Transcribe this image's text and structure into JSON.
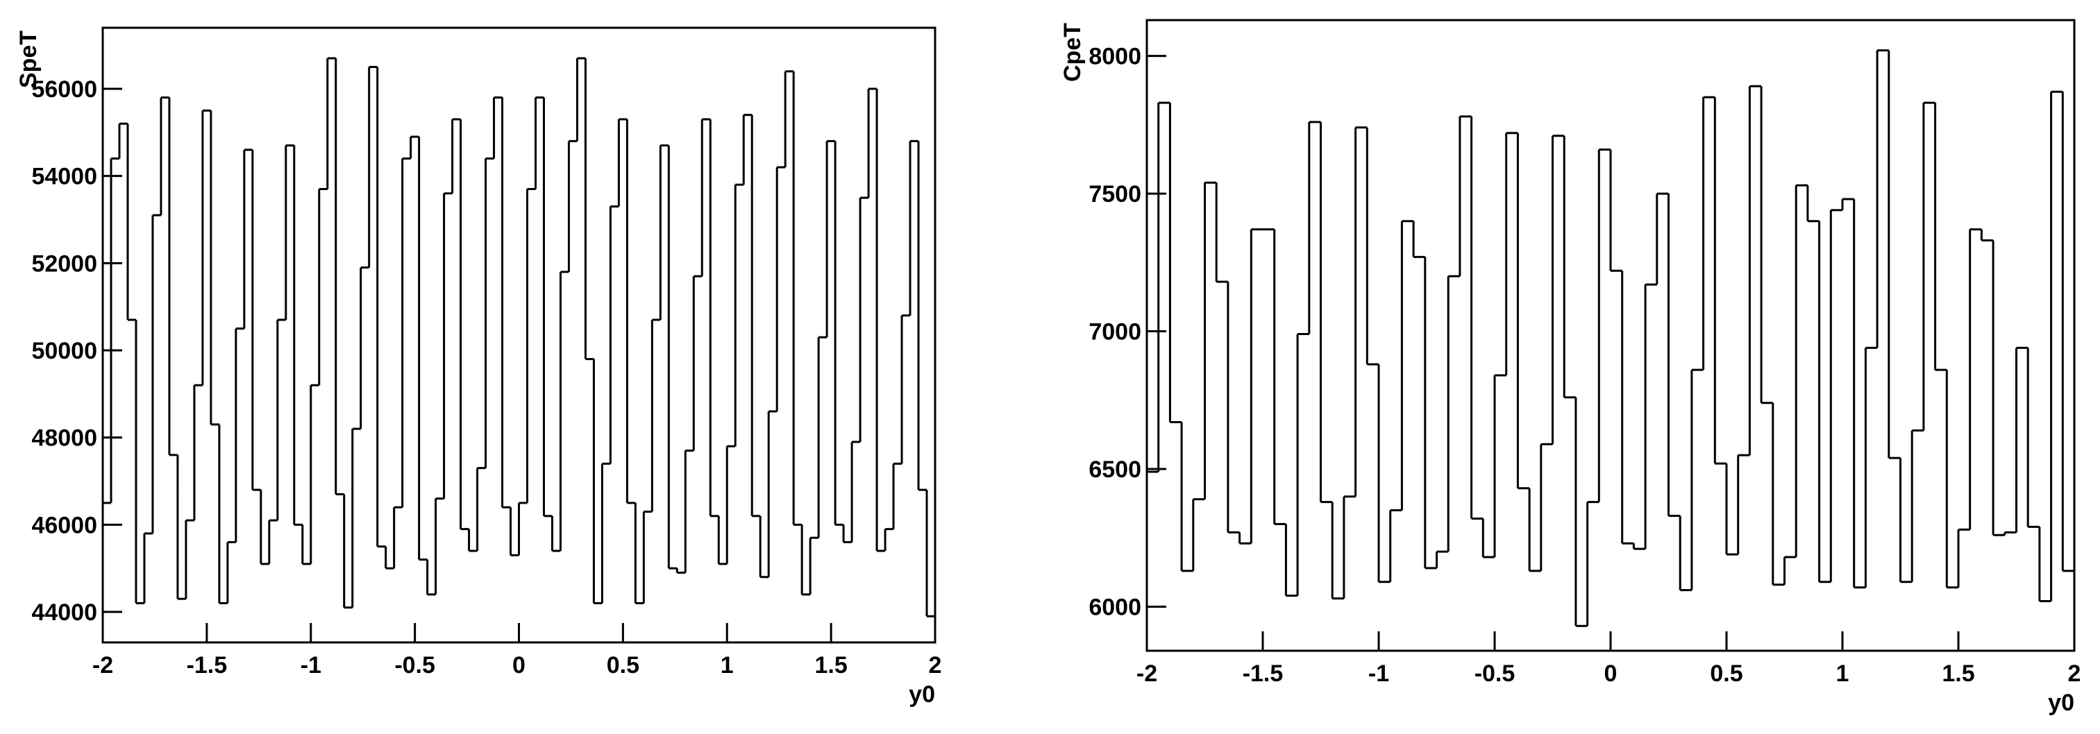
{
  "chart_data": [
    {
      "type": "histogram",
      "ylabel": "SpeT",
      "xlabel": "y0",
      "color": "#000000",
      "xlim": [
        -2,
        2
      ],
      "ylim": [
        43300,
        57400
      ],
      "xticks": [
        -2,
        -1.5,
        -1,
        -0.5,
        0,
        0.5,
        1,
        1.5,
        2
      ],
      "yticks": [
        44000,
        46000,
        48000,
        50000,
        52000,
        54000,
        56000
      ],
      "bins": [
        -2,
        -1.96,
        -1.92,
        -1.88,
        -1.84,
        -1.8,
        -1.76,
        -1.72,
        -1.68,
        -1.64,
        -1.6,
        -1.56,
        -1.52,
        -1.48,
        -1.44,
        -1.4,
        -1.36,
        -1.32,
        -1.28,
        -1.24,
        -1.2,
        -1.16,
        -1.12,
        -1.08,
        -1.04,
        -1,
        -0.96,
        -0.92,
        -0.88,
        -0.84,
        -0.8,
        -0.76,
        -0.72,
        -0.68,
        -0.64,
        -0.6,
        -0.56,
        -0.52,
        -0.48,
        -0.44,
        -0.4,
        -0.36,
        -0.32,
        -0.28,
        -0.24,
        -0.2,
        -0.16,
        -0.12,
        -0.08,
        -0.04,
        0,
        0.04,
        0.08,
        0.12,
        0.16,
        0.2,
        0.24,
        0.28,
        0.32,
        0.36,
        0.4,
        0.44,
        0.48,
        0.52,
        0.56,
        0.6,
        0.64,
        0.68,
        0.72,
        0.76,
        0.8,
        0.84,
        0.88,
        0.92,
        0.96,
        1,
        1.04,
        1.08,
        1.12,
        1.16,
        1.2,
        1.24,
        1.28,
        1.32,
        1.36,
        1.4,
        1.44,
        1.48,
        1.52,
        1.56,
        1.6,
        1.64,
        1.68,
        1.72,
        1.76,
        1.8,
        1.84,
        1.88,
        1.92,
        1.96,
        2
      ],
      "values": [
        46500,
        54400,
        55200,
        50700,
        44200,
        45800,
        53100,
        55800,
        47600,
        44300,
        46100,
        49200,
        55500,
        48300,
        44200,
        45600,
        50500,
        54600,
        46800,
        45100,
        46100,
        50700,
        54700,
        46000,
        45100,
        49200,
        53700,
        56700,
        46700,
        44100,
        48200,
        51900,
        56500,
        45500,
        45000,
        46400,
        54400,
        54900,
        45200,
        44400,
        46600,
        53600,
        55300,
        45900,
        45400,
        47300,
        54400,
        55800,
        46400,
        45300,
        46500,
        53700,
        55800,
        46200,
        45400,
        51800,
        54800,
        56700,
        49800,
        44200,
        47400,
        53300,
        55300,
        46500,
        44200,
        46300,
        50700,
        54700,
        45000,
        44900,
        47700,
        51700,
        55300,
        46200,
        45100,
        47800,
        53800,
        55400,
        46200,
        44800,
        48600,
        54200,
        56400,
        46000,
        44400,
        45700,
        50300,
        54800,
        46000,
        45600,
        47900,
        53500,
        56000,
        45400,
        45900,
        47400,
        50800,
        54800,
        46800,
        43900
      ]
    },
    {
      "type": "histogram",
      "ylabel": "CpeT",
      "xlabel": "y0",
      "color": "#000000",
      "xlim": [
        -2,
        2
      ],
      "ylim": [
        5840,
        8130
      ],
      "xticks": [
        -2,
        -1.5,
        -1,
        -0.5,
        0,
        0.5,
        1,
        1.5,
        2
      ],
      "yticks": [
        6000,
        6500,
        7000,
        7500,
        8000
      ],
      "bins": [
        -2,
        -1.95,
        -1.9,
        -1.85,
        -1.8,
        -1.75,
        -1.7,
        -1.65,
        -1.6,
        -1.55,
        -1.5,
        -1.45,
        -1.4,
        -1.35,
        -1.3,
        -1.25,
        -1.2,
        -1.15,
        -1.1,
        -1.05,
        -1,
        -0.95,
        -0.9,
        -0.85,
        -0.8,
        -0.75,
        -0.7,
        -0.65,
        -0.6,
        -0.55,
        -0.5,
        -0.45,
        -0.4,
        -0.35,
        -0.3,
        -0.25,
        -0.2,
        -0.15,
        -0.1,
        -0.05,
        0,
        0.05,
        0.1,
        0.15,
        0.2,
        0.25,
        0.3,
        0.35,
        0.4,
        0.45,
        0.5,
        0.55,
        0.6,
        0.65,
        0.7,
        0.75,
        0.8,
        0.85,
        0.9,
        0.95,
        1,
        1.05,
        1.1,
        1.15,
        1.2,
        1.25,
        1.3,
        1.35,
        1.4,
        1.45,
        1.5,
        1.55,
        1.6,
        1.65,
        1.7,
        1.75,
        1.8,
        1.85,
        1.9,
        1.95,
        2
      ],
      "values": [
        6490,
        7830,
        6670,
        6130,
        6390,
        7540,
        7180,
        6270,
        6230,
        7370,
        7370,
        6300,
        6040,
        6990,
        7760,
        6380,
        6030,
        6400,
        7740,
        6880,
        6090,
        6350,
        7400,
        7270,
        6140,
        6200,
        7200,
        7780,
        6320,
        6180,
        6840,
        7720,
        6430,
        6130,
        6590,
        7710,
        6760,
        5930,
        6380,
        7660,
        7220,
        6230,
        6210,
        7170,
        7500,
        6330,
        6060,
        6860,
        7850,
        6520,
        6190,
        6550,
        7890,
        6740,
        6080,
        6180,
        7530,
        7400,
        6090,
        7440,
        7480,
        6070,
        6940,
        8020,
        6540,
        6090,
        6640,
        7830,
        6860,
        6070,
        6280,
        7370,
        7330,
        6260,
        6270,
        6940,
        6290,
        6020,
        7870,
        6130
      ]
    }
  ]
}
